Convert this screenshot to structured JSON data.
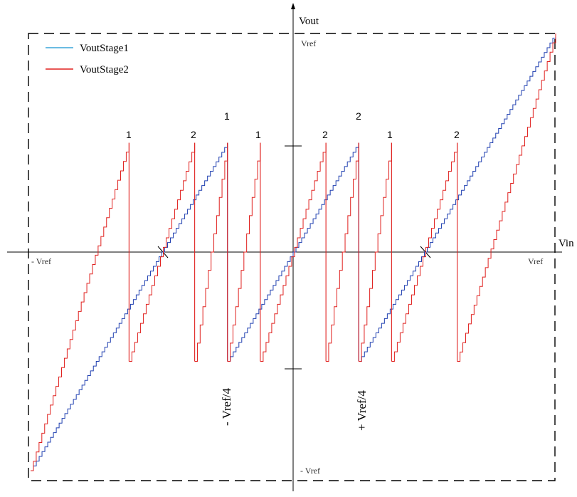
{
  "axes": {
    "x_label": "Vin",
    "y_label": "Vout",
    "x_neg_label": "- Vref",
    "x_pos_label": "Vref",
    "y_pos_label": "Vref",
    "y_neg_label": "- Vref",
    "tick_neg_quarter": "- Vref/4",
    "tick_pos_quarter": "+ Vref/4"
  },
  "legend": {
    "stage1": "VoutStage1",
    "stage2": "VoutStage2"
  },
  "segment_labels": {
    "top_row": [
      "1",
      "2",
      "1",
      "2",
      "1",
      "2"
    ],
    "upper_row": [
      "1",
      "2"
    ]
  },
  "colors": {
    "stage1": "#1f3fb0",
    "stage1_legend": "#3aa6d8",
    "stage2": "#e0201e",
    "axis": "#000000"
  },
  "chart_data": {
    "type": "line",
    "series": [
      {
        "name": "VoutStage1",
        "segments": [
          {
            "x": [
              -1.0,
              -0.25
            ],
            "y": [
              -1.0,
              0.5
            ]
          },
          {
            "x": [
              -0.25,
              0.25
            ],
            "y": [
              -0.5,
              0.5
            ]
          },
          {
            "x": [
              0.25,
              1.0
            ],
            "y": [
              -0.5,
              1.0
            ]
          }
        ]
      },
      {
        "name": "VoutStage2",
        "segments": [
          {
            "x": [
              -1.0,
              -0.625
            ],
            "y": [
              -1.0,
              0.5
            ]
          },
          {
            "x": [
              -0.625,
              -0.375
            ],
            "y": [
              -0.5,
              0.5
            ]
          },
          {
            "x": [
              -0.375,
              -0.25
            ],
            "y": [
              -0.5,
              0.5
            ]
          },
          {
            "x": [
              -0.25,
              -0.125
            ],
            "y": [
              -0.5,
              0.5
            ]
          },
          {
            "x": [
              -0.125,
              0.125
            ],
            "y": [
              -0.5,
              0.5
            ]
          },
          {
            "x": [
              0.125,
              0.25
            ],
            "y": [
              -0.5,
              0.5
            ]
          },
          {
            "x": [
              0.25,
              0.375
            ],
            "y": [
              -0.5,
              0.5
            ]
          },
          {
            "x": [
              0.375,
              0.625
            ],
            "y": [
              -0.5,
              0.5
            ]
          },
          {
            "x": [
              0.625,
              1.0
            ],
            "y": [
              -0.5,
              1.0
            ]
          }
        ]
      }
    ]
  }
}
